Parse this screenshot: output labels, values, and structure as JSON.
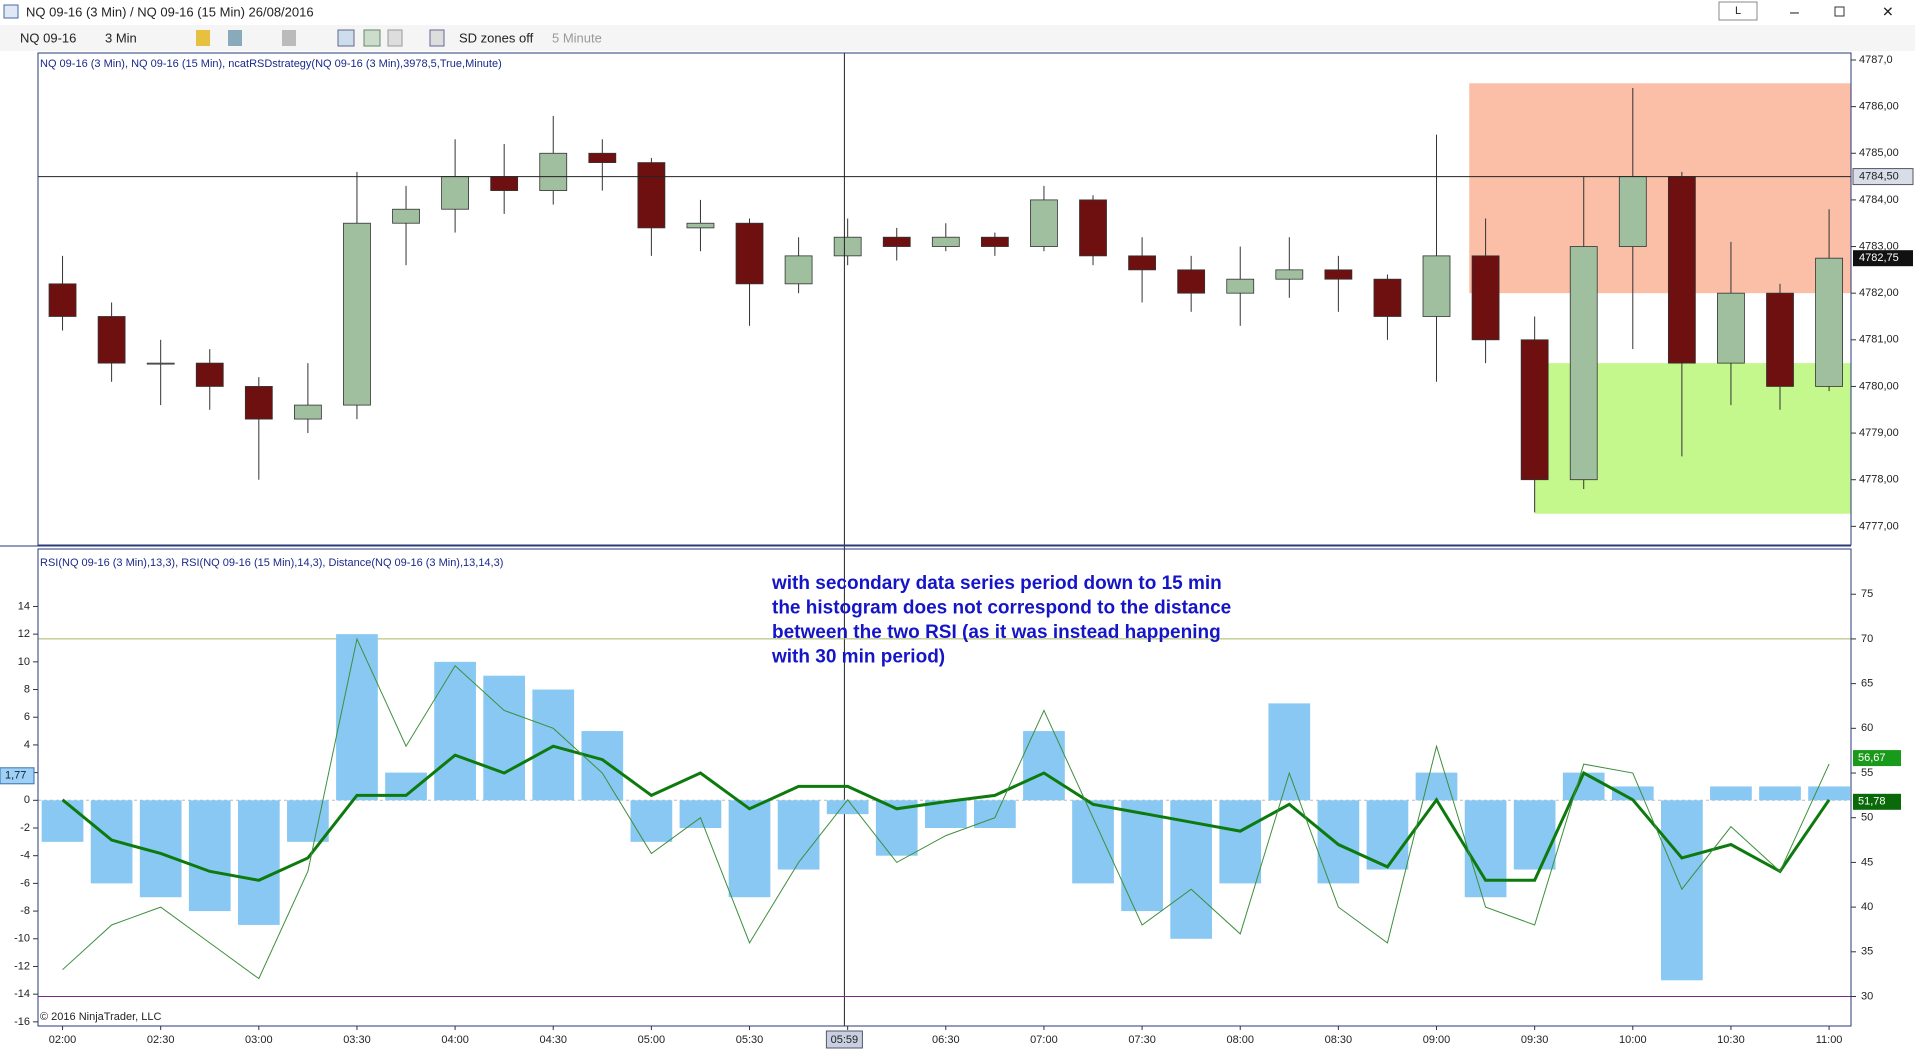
{
  "window": {
    "title": "NQ 09-16 (3 Min) / NQ 09-16 (15 Min)  26/08/2016",
    "button": "L",
    "toolbar": {
      "instrument": "NQ 09-16",
      "interval": "3 Min",
      "zones": "SD zones off",
      "secondary": "5 Minute"
    },
    "price_label": "NQ 09-16 (3 Min), NQ 09-16 (15 Min), ncatRSDstrategy(NQ 09-16 (3 Min),3978,5,True,Minute)",
    "indicator_label": "RSI(NQ 09-16 (3 Min),13,3), RSI(NQ 09-16 (15 Min),14,3), Distance(NQ 09-16 (3 Min),13,14,3)",
    "copyright": "© 2016 NinjaTrader, LLC"
  },
  "chart_data": [
    {
      "type": "candlestick",
      "x": [
        120,
        135,
        150,
        165,
        180,
        195,
        210,
        225,
        240,
        255,
        270,
        285,
        300,
        315,
        330,
        345,
        360,
        375,
        390,
        405,
        420,
        435,
        450,
        465,
        480,
        495,
        510,
        525,
        540,
        555,
        570,
        585,
        600,
        615,
        630,
        645,
        660
      ],
      "open": [
        4782.2,
        4781.5,
        4780.5,
        4780.5,
        4780.0,
        4779.3,
        4779.6,
        4783.5,
        4783.8,
        4784.5,
        4784.2,
        4785.0,
        4784.8,
        4783.4,
        4783.5,
        4782.2,
        4782.8,
        4783.2,
        4783.0,
        4783.2,
        4783.0,
        4784.0,
        4782.8,
        4782.5,
        4782.0,
        4782.3,
        4782.5,
        4782.3,
        4781.5,
        4782.8,
        4781.0,
        4778.0,
        4783.0,
        4784.5,
        4780.5,
        4782.0,
        4780.0
      ],
      "high": [
        4782.8,
        4781.8,
        4781.0,
        4780.8,
        4780.2,
        4780.5,
        4784.6,
        4784.3,
        4785.3,
        4785.2,
        4785.8,
        4785.3,
        4784.9,
        4784.0,
        4783.6,
        4783.2,
        4783.6,
        4783.4,
        4783.5,
        4783.3,
        4784.3,
        4784.1,
        4783.2,
        4782.8,
        4783.0,
        4783.2,
        4782.8,
        4782.4,
        4785.4,
        4783.6,
        4781.5,
        4784.5,
        4786.4,
        4784.6,
        4783.1,
        4782.2,
        4783.8
      ],
      "low": [
        4781.2,
        4780.1,
        4779.6,
        4779.5,
        4778.0,
        4779.0,
        4779.3,
        4782.6,
        4783.3,
        4783.7,
        4783.9,
        4784.2,
        4782.8,
        4782.9,
        4781.3,
        4782.0,
        4782.6,
        4782.7,
        4782.9,
        4782.8,
        4782.9,
        4782.6,
        4781.8,
        4781.6,
        4781.3,
        4781.9,
        4781.6,
        4781.0,
        4780.1,
        4780.5,
        4777.3,
        4777.8,
        4780.8,
        4778.5,
        4779.6,
        4779.5,
        4779.9
      ],
      "close": [
        4781.5,
        4780.5,
        4780.5,
        4780.0,
        4779.3,
        4779.6,
        4783.5,
        4783.8,
        4784.5,
        4784.2,
        4785.0,
        4784.8,
        4783.4,
        4783.5,
        4782.2,
        4782.8,
        4783.2,
        4783.0,
        4783.2,
        4783.0,
        4784.0,
        4782.8,
        4782.5,
        4782.0,
        4782.3,
        4782.5,
        4782.3,
        4781.5,
        4782.8,
        4781.0,
        4778.0,
        4783.0,
        4784.5,
        4780.5,
        4782.0,
        4780.0,
        4782.75
      ],
      "up_color": "#9fbf9f",
      "down_color": "#6e1010",
      "xlim": [
        112.5,
        666.7
      ],
      "xticks": [
        {
          "value": 120,
          "label": "02:00"
        },
        {
          "value": 150,
          "label": "02:30"
        },
        {
          "value": 180,
          "label": "03:00"
        },
        {
          "value": 210,
          "label": "03:30"
        },
        {
          "value": 240,
          "label": "04:00"
        },
        {
          "value": 270,
          "label": "04:30"
        },
        {
          "value": 300,
          "label": "05:00"
        },
        {
          "value": 330,
          "label": "05:30"
        },
        {
          "value": 360,
          "label": "06:00"
        },
        {
          "value": 390,
          "label": "06:30"
        },
        {
          "value": 420,
          "label": "07:00"
        },
        {
          "value": 450,
          "label": "07:30"
        },
        {
          "value": 480,
          "label": "08:00"
        },
        {
          "value": 510,
          "label": "08:30"
        },
        {
          "value": 540,
          "label": "09:00"
        },
        {
          "value": 570,
          "label": "09:30"
        },
        {
          "value": 600,
          "label": "10:00"
        },
        {
          "value": 630,
          "label": "10:30"
        },
        {
          "value": 660,
          "label": "11:00"
        }
      ],
      "ylim": [
        4776.6,
        4787.15
      ],
      "yticks": [
        {
          "value": 4777,
          "label": "4777,00"
        },
        {
          "value": 4778,
          "label": "4778,00"
        },
        {
          "value": 4779,
          "label": "4779,00"
        },
        {
          "value": 4780,
          "label": "4780,00"
        },
        {
          "value": 4781,
          "label": "4781,00"
        },
        {
          "value": 4782,
          "label": "4782,00"
        },
        {
          "value": 4783,
          "label": "4783,00"
        },
        {
          "value": 4784,
          "label": "4784,00"
        },
        {
          "value": 4785,
          "label": "4785,00"
        },
        {
          "value": 4786,
          "label": "4786,00"
        },
        {
          "value": 4787,
          "label": "4787,0"
        }
      ],
      "zones": [
        {
          "start": 550,
          "top": 4786.5,
          "bottom": 4782.0,
          "color": "#fbbea6"
        },
        {
          "start": 570,
          "top": 4780.5,
          "bottom": 4777.27,
          "color": "#c4f88c"
        }
      ],
      "crosshair": {
        "x": {
          "value": 359,
          "label": "05:59"
        },
        "y": {
          "value": 4784.5,
          "label": "4784,50"
        }
      },
      "last": {
        "value": 4782.75,
        "label": "4782,75"
      }
    },
    {
      "type": "bar",
      "x": [
        120,
        135,
        150,
        165,
        180,
        195,
        210,
        225,
        240,
        255,
        270,
        285,
        300,
        315,
        330,
        345,
        360,
        375,
        390,
        405,
        420,
        435,
        450,
        465,
        480,
        495,
        510,
        525,
        540,
        555,
        570,
        585,
        600,
        615,
        630,
        645,
        660
      ],
      "ylim": [
        -16.3,
        18.15
      ],
      "yticks": [
        14,
        12,
        10,
        8,
        6,
        4,
        2,
        0,
        -2,
        -4,
        -6,
        -8,
        -10,
        -12,
        -14,
        -16
      ],
      "y2lim": [
        26.7,
        80.06
      ],
      "y2ticks": [
        30,
        35,
        40,
        45,
        50,
        55,
        60,
        65,
        70,
        75
      ],
      "series": [
        {
          "color": "#88c8f2",
          "values": [
            -3,
            -6,
            -7,
            -8,
            -9,
            -3,
            12,
            2,
            10,
            9,
            8,
            5,
            -3,
            -2,
            -7,
            -5,
            -1,
            -4,
            -2,
            -2,
            5,
            -6,
            -8,
            -10,
            -6,
            7,
            -6,
            -5,
            2,
            -7,
            -5,
            2,
            1,
            -13,
            1,
            1,
            1
          ]
        },
        {
          "type": "line",
          "axis": "y2",
          "color": "#3d8f3d",
          "width": 1,
          "values": [
            33,
            38,
            40,
            36,
            32,
            44,
            70,
            58,
            67,
            62,
            60,
            55,
            46,
            50,
            36,
            45,
            52,
            45,
            48,
            50,
            62,
            50,
            38,
            42,
            37,
            55,
            40,
            36,
            58,
            40,
            38,
            56,
            55,
            42,
            49,
            44,
            56
          ]
        },
        {
          "type": "line",
          "axis": "y2",
          "color": "#0d7a0d",
          "width": 3,
          "values": [
            52,
            47.5,
            46,
            44,
            43,
            45.5,
            52.5,
            52.5,
            57,
            55,
            58,
            56.5,
            52.5,
            55,
            51,
            53.5,
            53.5,
            51,
            51.8,
            52.5,
            55,
            51.5,
            50.5,
            49.5,
            48.5,
            51.5,
            47,
            44.5,
            52,
            43,
            43,
            55,
            52,
            45.5,
            47,
            44,
            52
          ]
        }
      ],
      "levels": [
        {
          "value": 70,
          "color": "#a8b860"
        },
        {
          "value": 30,
          "color": "#7a2a8a"
        }
      ],
      "tags": [
        {
          "axis": "y2",
          "value": 56.67,
          "label": "56,67",
          "color": "#1a9a1a"
        },
        {
          "axis": "y2",
          "value": 51.78,
          "label": "51,78",
          "color": "#0a6a0a"
        },
        {
          "axis": "y",
          "value": 1.77,
          "label": "1,77",
          "color": "#9fd0f5"
        }
      ],
      "annotation": [
        "with secondary data series period down to 15 min",
        "the histogram does not correspond to the distance",
        "between the two RSI (as it was instead happening",
        "with 30 min period)"
      ]
    }
  ]
}
